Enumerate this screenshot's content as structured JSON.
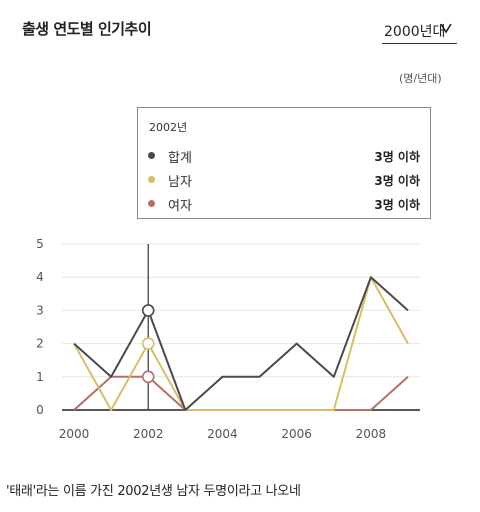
{
  "header": {
    "title": "출생 연도별 인기추이"
  },
  "decade_select": {
    "value": "2000년대"
  },
  "unit_label": "(명/년대)",
  "tooltip": {
    "year": "2002년",
    "rows": [
      {
        "name": "합계",
        "value": "3명 이하",
        "color": "#4a4a4a"
      },
      {
        "name": "남자",
        "value": "3명 이하",
        "color": "#d8be6a"
      },
      {
        "name": "여자",
        "value": "3명 이하",
        "color": "#b76e64"
      }
    ]
  },
  "chart_data": {
    "type": "line",
    "x": [
      2000,
      2001,
      2002,
      2003,
      2004,
      2005,
      2006,
      2007,
      2008,
      2009
    ],
    "x_ticks": [
      "2000",
      "2002",
      "2004",
      "2006",
      "2008"
    ],
    "y_ticks": [
      "0",
      "1",
      "2",
      "3",
      "4",
      "5"
    ],
    "xlim": [
      2000,
      2009
    ],
    "ylim": [
      0,
      5
    ],
    "grid": true,
    "highlight_x": 2002,
    "series": [
      {
        "name": "합계",
        "color": "#4a4a4a",
        "values": [
          2,
          1,
          3,
          0,
          1,
          1,
          2,
          1,
          4,
          3
        ]
      },
      {
        "name": "남자",
        "color": "#d8be6a",
        "values": [
          2,
          0,
          2,
          0,
          0,
          0,
          0,
          0,
          4,
          2
        ]
      },
      {
        "name": "여자",
        "color": "#b76e64",
        "values": [
          0,
          1,
          1,
          0,
          0,
          0,
          0,
          0,
          0,
          1
        ]
      }
    ]
  },
  "caption": "'태래'라는 이름 가진 2002년생 남자 두명이라고 나오네"
}
